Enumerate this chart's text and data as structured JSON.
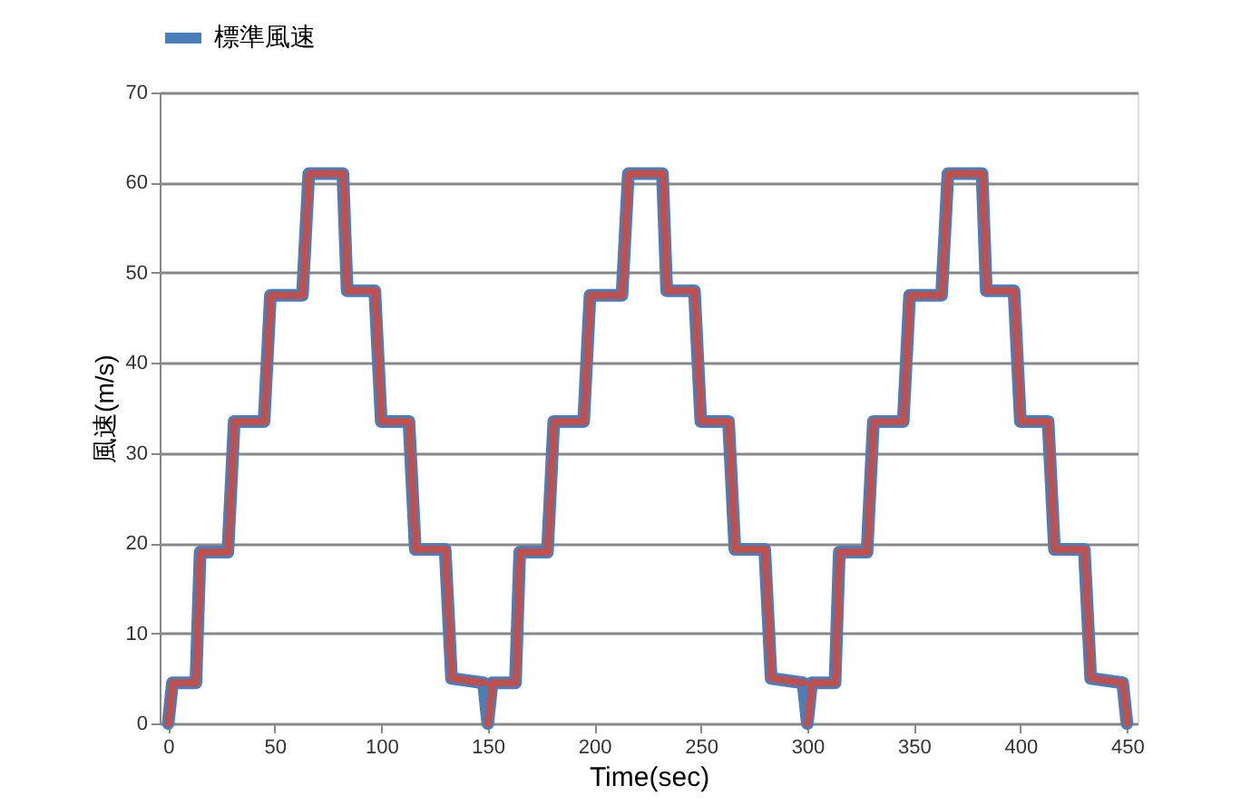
{
  "chart_data": {
    "type": "line",
    "xlabel": "Time(sec)",
    "ylabel": "風速(m/s)",
    "xlim": [
      -4,
      455
    ],
    "xticks": [
      0,
      50,
      100,
      150,
      200,
      250,
      300,
      350,
      400,
      450
    ],
    "ylim": [
      0,
      70
    ],
    "yticks": [
      0,
      10,
      20,
      30,
      40,
      50,
      60,
      70
    ],
    "grid": "y",
    "legend": "top",
    "line_style": "solid",
    "marker": "none",
    "series": [
      {
        "name": "標準風速",
        "color": "#4a7ebb",
        "x": [
          0,
          2,
          13,
          15,
          28,
          31,
          45,
          48,
          63,
          66,
          82,
          84,
          97,
          100,
          113,
          116,
          130,
          133,
          148,
          150,
          152,
          163,
          165,
          178,
          181,
          195,
          198,
          213,
          216,
          232,
          234,
          247,
          250,
          263,
          266,
          280,
          283,
          298,
          300,
          302,
          313,
          315,
          328,
          331,
          345,
          348,
          363,
          366,
          382,
          384,
          397,
          400,
          413,
          416,
          430,
          433,
          448,
          450
        ],
        "values": [
          0,
          4.5,
          4.5,
          19,
          19,
          33.5,
          33.5,
          47.5,
          47.5,
          61,
          61,
          48,
          48,
          33.5,
          33.5,
          19.3,
          19.3,
          5,
          4.5,
          0,
          4.5,
          4.5,
          19,
          19,
          33.5,
          33.5,
          47.5,
          47.5,
          61,
          61,
          48,
          48,
          33.5,
          33.5,
          19.3,
          19.3,
          5,
          4.5,
          0,
          4.5,
          4.5,
          19,
          19,
          33.5,
          33.5,
          47.5,
          47.5,
          61,
          61,
          48,
          48,
          33.5,
          33.5,
          19.3,
          19.3,
          5,
          4.5,
          0
        ]
      },
      {
        "color": "#c0504d",
        "x": [
          0,
          2,
          13,
          15,
          28,
          31,
          45,
          48,
          63,
          66,
          82,
          84,
          97,
          100,
          113,
          116,
          130,
          133,
          148,
          149,
          150,
          152,
          163,
          165,
          178,
          181,
          195,
          198,
          213,
          216,
          232,
          234,
          247,
          250,
          263,
          266,
          280,
          283,
          298,
          299,
          300,
          302,
          313,
          315,
          328,
          331,
          345,
          348,
          363,
          366,
          382,
          384,
          397,
          400,
          413,
          416,
          430,
          433,
          448,
          450
        ],
        "values": [
          0,
          4.5,
          4.5,
          19,
          19,
          33.5,
          33.5,
          47.5,
          47.5,
          61,
          61,
          48,
          48,
          33.5,
          33.5,
          19.3,
          19.3,
          5,
          4.5,
          null,
          0,
          4.5,
          4.5,
          19,
          19,
          33.5,
          33.5,
          47.5,
          47.5,
          61,
          61,
          48,
          48,
          33.5,
          33.5,
          19.3,
          19.3,
          5,
          4.5,
          null,
          0,
          4.5,
          4.5,
          19,
          19,
          33.5,
          33.5,
          47.5,
          47.5,
          61,
          61,
          48,
          48,
          33.5,
          33.5,
          19.3,
          19.3,
          5,
          4.5,
          0
        ]
      }
    ]
  }
}
